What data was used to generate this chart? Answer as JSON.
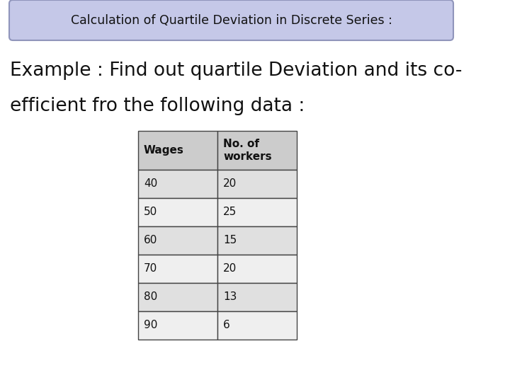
{
  "title_box_text": "Calculation of Quartile Deviation in Discrete Series :",
  "subtitle_line1": "Example : Find out quartile Deviation and its co-",
  "subtitle_line2": "efficient fro the following data :",
  "table_headers": [
    "Wages",
    "No. of\nworkers"
  ],
  "table_rows": [
    [
      "40",
      "20"
    ],
    [
      "50",
      "25"
    ],
    [
      "60",
      "15"
    ],
    [
      "70",
      "20"
    ],
    [
      "80",
      "13"
    ],
    [
      "90",
      "6"
    ]
  ],
  "bg_color": "#ffffff",
  "title_box_bg": "#c5c8e8",
  "title_box_border": "#9095bb",
  "title_font_size": 12.5,
  "subtitle_font_size": 19,
  "table_header_bg": "#cccccc",
  "table_row_bg_even": "#e0e0e0",
  "table_row_bg_odd": "#efefef",
  "table_border_color": "#444444",
  "table_text_font_size": 11,
  "table_header_font_size": 11
}
